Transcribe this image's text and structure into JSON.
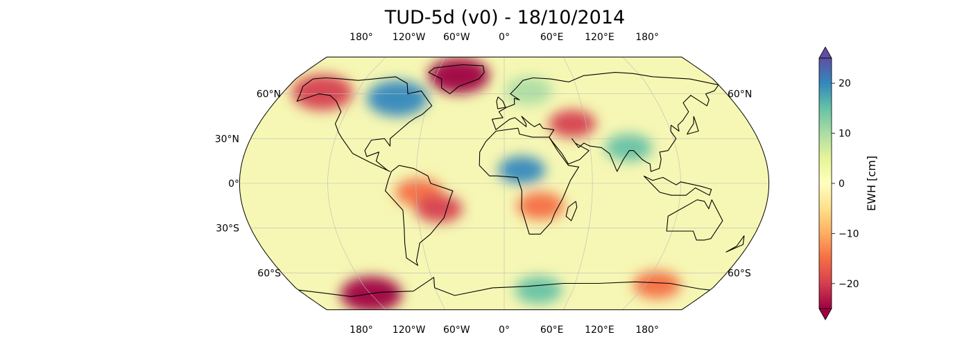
{
  "title": "TUD-5d (v0) - 18/10/2014",
  "map": {
    "projection": "Robinson",
    "lon_ticks": [
      "180°",
      "120°W",
      "60°W",
      "0°",
      "60°E",
      "120°E",
      "180°"
    ],
    "lat_ticks_left": [
      "60°N",
      "30°N",
      "0°",
      "30°S",
      "60°S"
    ],
    "lat_ticks_right": [
      "60°N",
      "60°S"
    ],
    "gridlines": true,
    "coastlines": true,
    "features": [
      {
        "name": "greenland-mass-loss",
        "lat": 73,
        "lon": -40,
        "value": -25
      },
      {
        "name": "hudson-bay-gain",
        "lat": 57,
        "lon": -85,
        "value": 22
      },
      {
        "name": "alaska-loss",
        "lat": 61,
        "lon": -148,
        "value": -22
      },
      {
        "name": "sahel-gain",
        "lat": 9,
        "lon": 12,
        "value": 18
      },
      {
        "name": "amazon-loss",
        "lat": -6,
        "lon": -58,
        "value": -16
      },
      {
        "name": "brazil-loss",
        "lat": -17,
        "lon": -45,
        "value": -20
      },
      {
        "name": "southern-africa-loss",
        "lat": -15,
        "lon": 25,
        "value": -15
      },
      {
        "name": "caspian-loss",
        "lat": 40,
        "lon": 50,
        "value": -20
      },
      {
        "name": "india-gain",
        "lat": 24,
        "lon": 87,
        "value": 16
      },
      {
        "name": "scandinavia-gain",
        "lat": 62,
        "lon": 20,
        "value": 12
      },
      {
        "name": "west-antarctica-loss",
        "lat": -76,
        "lon": -120,
        "value": -25
      },
      {
        "name": "east-antarctica-gain",
        "lat": -72,
        "lon": 30,
        "value": 15
      },
      {
        "name": "wilkes-land-loss",
        "lat": -68,
        "lon": 130,
        "value": -14
      }
    ]
  },
  "colorbar": {
    "label": "EWH [cm]",
    "ticks": [
      "20",
      "10",
      "0",
      "−10",
      "−20"
    ],
    "min": -25,
    "max": 25,
    "colormap": "Spectral",
    "colors": [
      "#9e0142",
      "#d53e4f",
      "#f46d43",
      "#fdae61",
      "#fee08b",
      "#ffffbf",
      "#e6f598",
      "#abdda4",
      "#66c2a5",
      "#3288bd",
      "#5e4fa2"
    ]
  }
}
